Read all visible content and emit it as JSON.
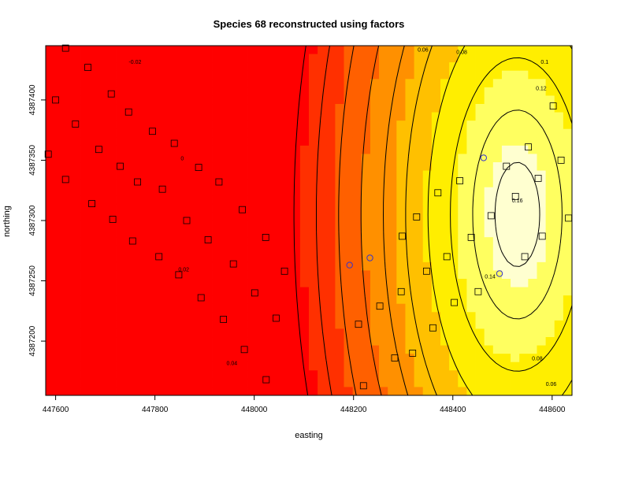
{
  "chart_data": {
    "type": "heatmap",
    "title": "Species 68 reconstructed using factors",
    "xlabel": "easting",
    "ylabel": "northing",
    "xlim": [
      447580,
      448640
    ],
    "ylim": [
      4387155,
      4387445
    ],
    "x_ticks": [
      447600,
      447800,
      448000,
      448200,
      448400,
      448600
    ],
    "y_ticks": [
      4387200,
      4387250,
      4387300,
      4387350,
      4387400
    ],
    "colors": {
      "scale": [
        "#ff0000",
        "#ff3000",
        "#ff6000",
        "#ff9000",
        "#ffc000",
        "#ffee00",
        "#ffff60",
        "#ffffd0"
      ],
      "square_marker": "#000000",
      "circle_marker": "#3333cc",
      "contour_line": "#000000"
    },
    "grid": false,
    "legend": "none",
    "contour_levels": [
      -0.02,
      0,
      0.02,
      0.04,
      0.06,
      0.08,
      0.1,
      0.12,
      0.14,
      0.16
    ],
    "contour_labels": [
      {
        "text": "-0.02",
        "x": 447760,
        "y": 4387430
      },
      {
        "text": "0",
        "x": 447855,
        "y": 4387350
      },
      {
        "text": "0.02",
        "x": 447858,
        "y": 4387258
      },
      {
        "text": "0.04",
        "x": 447955,
        "y": 4387180
      },
      {
        "text": "0.06",
        "x": 448340,
        "y": 4387440
      },
      {
        "text": "0.08",
        "x": 448418,
        "y": 4387438
      },
      {
        "text": "0.1",
        "x": 448585,
        "y": 4387430
      },
      {
        "text": "0.12",
        "x": 448578,
        "y": 4387408
      },
      {
        "text": "0.14",
        "x": 448475,
        "y": 4387252
      },
      {
        "text": "0.16",
        "x": 448530,
        "y": 4387315
      },
      {
        "text": "0.08",
        "x": 448570,
        "y": 4387184
      },
      {
        "text": "0.06",
        "x": 448598,
        "y": 4387163
      }
    ],
    "square_points": [
      [
        447620,
        4387443
      ],
      [
        447665,
        4387427
      ],
      [
        447600,
        4387400
      ],
      [
        447712,
        4387405
      ],
      [
        447747,
        4387390
      ],
      [
        447640,
        4387380
      ],
      [
        447795,
        4387374
      ],
      [
        447839,
        4387364
      ],
      [
        447585,
        4387355
      ],
      [
        447687,
        4387359
      ],
      [
        447730,
        4387345
      ],
      [
        447888,
        4387344
      ],
      [
        447620,
        4387334
      ],
      [
        447765,
        4387332
      ],
      [
        447929,
        4387332
      ],
      [
        447815,
        4387326
      ],
      [
        447673,
        4387314
      ],
      [
        447976,
        4387309
      ],
      [
        447715,
        4387301
      ],
      [
        447864,
        4387300
      ],
      [
        447755,
        4387283
      ],
      [
        447907,
        4387284
      ],
      [
        448023,
        4387286
      ],
      [
        447808,
        4387270
      ],
      [
        447958,
        4387264
      ],
      [
        448061,
        4387258
      ],
      [
        447848,
        4387255
      ],
      [
        448001,
        4387240
      ],
      [
        447893,
        4387236
      ],
      [
        447938,
        4387218
      ],
      [
        448044,
        4387219
      ],
      [
        447980,
        4387193
      ],
      [
        448024,
        4387168
      ],
      [
        448210,
        4387214
      ],
      [
        448253,
        4387229
      ],
      [
        448296,
        4387241
      ],
      [
        448283,
        4387186
      ],
      [
        448319,
        4387190
      ],
      [
        448347,
        4387258
      ],
      [
        448360,
        4387211
      ],
      [
        448403,
        4387232
      ],
      [
        448298,
        4387287
      ],
      [
        448327,
        4387303
      ],
      [
        448388,
        4387270
      ],
      [
        448370,
        4387323
      ],
      [
        448414,
        4387333
      ],
      [
        448451,
        4387241
      ],
      [
        448437,
        4387286
      ],
      [
        448477,
        4387304
      ],
      [
        448508,
        4387345
      ],
      [
        448526,
        4387320
      ],
      [
        448545,
        4387270
      ],
      [
        448552,
        4387361
      ],
      [
        448572,
        4387335
      ],
      [
        448580,
        4387287
      ],
      [
        448602,
        4387395
      ],
      [
        448618,
        4387350
      ],
      [
        448633,
        4387302
      ],
      [
        448220,
        4387163
      ]
    ],
    "circle_points": [
      [
        448462,
        4387352
      ],
      [
        448233,
        4387269
      ],
      [
        448192,
        4387263
      ],
      [
        448494,
        4387256
      ]
    ],
    "value_model": {
      "base": 0.18,
      "peak_x": 448530,
      "peak_y": 4387305,
      "x_scale": 270,
      "y_scale": 260
    }
  }
}
